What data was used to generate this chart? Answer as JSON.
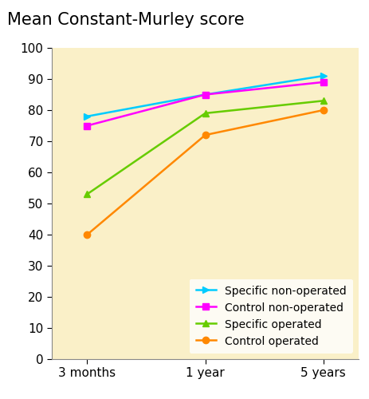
{
  "title": "Mean Constant-Murley score",
  "x_labels": [
    "3 months",
    "1 year",
    "5 years"
  ],
  "x_positions": [
    0,
    1,
    2
  ],
  "ylim": [
    0,
    100
  ],
  "yticks": [
    0,
    10,
    20,
    30,
    40,
    50,
    60,
    70,
    80,
    90,
    100
  ],
  "series": [
    {
      "label": "Specific non-operated",
      "color": "#00CCFF",
      "values": [
        78,
        85,
        91
      ],
      "marker": ">"
    },
    {
      "label": "Control non-operated",
      "color": "#FF00FF",
      "values": [
        75,
        85,
        89
      ],
      "marker": "s"
    },
    {
      "label": "Specific operated",
      "color": "#66CC00",
      "values": [
        53,
        79,
        83
      ],
      "marker": "^"
    },
    {
      "label": "Control operated",
      "color": "#FF8800",
      "values": [
        40,
        72,
        80
      ],
      "marker": "o"
    }
  ],
  "fig_background_color": "#FFFFFF",
  "plot_background_color": "#FAF0C8",
  "title_fontsize": 15,
  "legend_fontsize": 10,
  "tick_fontsize": 11,
  "markersize": 6,
  "linewidth": 1.8
}
